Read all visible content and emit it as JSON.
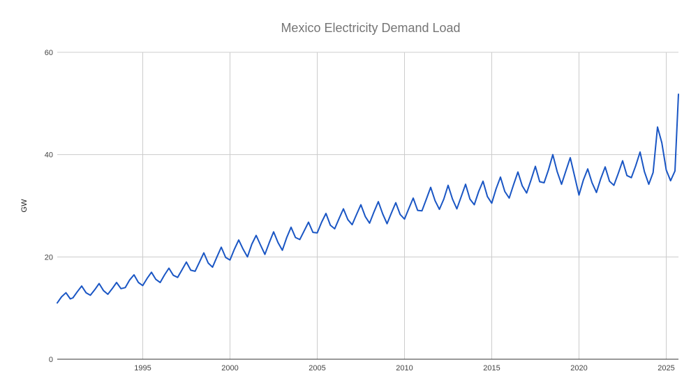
{
  "chart_data": {
    "type": "line",
    "title": "Mexico Electricity Demand Load",
    "xlabel": "",
    "ylabel": "GW",
    "xlim": [
      1990.1,
      2025.7
    ],
    "ylim": [
      0,
      60
    ],
    "y_ticks": [
      "0",
      "20",
      "40",
      "60"
    ],
    "x_ticks": [
      "1995",
      "2000",
      "2005",
      "2010",
      "2015",
      "2020",
      "2025"
    ],
    "grid": true,
    "legend": "none",
    "series": [
      {
        "name": "GW",
        "color": "#1a56c4",
        "x": [
          1990.1,
          1990.35,
          1990.6,
          1990.85,
          1991.0,
          1991.25,
          1991.5,
          1991.75,
          1992.0,
          1992.25,
          1992.5,
          1992.75,
          1993.0,
          1993.25,
          1993.5,
          1993.75,
          1994.0,
          1994.25,
          1994.5,
          1994.75,
          1995.0,
          1995.25,
          1995.5,
          1995.75,
          1996.0,
          1996.25,
          1996.5,
          1996.75,
          1997.0,
          1997.25,
          1997.5,
          1997.75,
          1998.0,
          1998.25,
          1998.5,
          1998.75,
          1999.0,
          1999.25,
          1999.5,
          1999.75,
          2000.0,
          2000.25,
          2000.5,
          2000.75,
          2001.0,
          2001.25,
          2001.5,
          2001.75,
          2002.0,
          2002.25,
          2002.5,
          2002.75,
          2003.0,
          2003.25,
          2003.5,
          2003.75,
          2004.0,
          2004.25,
          2004.5,
          2004.75,
          2005.0,
          2005.25,
          2005.5,
          2005.75,
          2006.0,
          2006.25,
          2006.5,
          2006.75,
          2007.0,
          2007.25,
          2007.5,
          2007.75,
          2008.0,
          2008.25,
          2008.5,
          2008.75,
          2009.0,
          2009.25,
          2009.5,
          2009.75,
          2010.0,
          2010.25,
          2010.5,
          2010.75,
          2011.0,
          2011.25,
          2011.5,
          2011.75,
          2012.0,
          2012.25,
          2012.5,
          2012.75,
          2013.0,
          2013.25,
          2013.5,
          2013.75,
          2014.0,
          2014.25,
          2014.5,
          2014.75,
          2015.0,
          2015.25,
          2015.5,
          2015.75,
          2016.0,
          2016.25,
          2016.5,
          2016.75,
          2017.0,
          2017.25,
          2017.5,
          2017.75,
          2018.0,
          2018.25,
          2018.5,
          2018.75,
          2019.0,
          2019.25,
          2019.5,
          2019.75,
          2020.0,
          2020.25,
          2020.5,
          2020.75,
          2021.0,
          2021.25,
          2021.5,
          2021.75,
          2022.0,
          2022.25,
          2022.5,
          2022.75,
          2023.0,
          2023.25,
          2023.5,
          2023.75,
          2024.0,
          2024.25,
          2024.5,
          2024.75,
          2025.0,
          2025.25,
          2025.5,
          2025.7
        ],
        "y": [
          11.0,
          12.2,
          13.0,
          11.8,
          12.0,
          13.2,
          14.3,
          13.0,
          12.5,
          13.6,
          14.8,
          13.4,
          12.7,
          13.8,
          15.0,
          13.8,
          14.0,
          15.5,
          16.5,
          15.0,
          14.4,
          15.8,
          17.0,
          15.6,
          15.0,
          16.5,
          17.8,
          16.4,
          16.0,
          17.5,
          19.0,
          17.4,
          17.2,
          19.0,
          20.8,
          18.8,
          18.0,
          20.0,
          21.9,
          19.9,
          19.4,
          21.5,
          23.3,
          21.5,
          20.0,
          22.5,
          24.2,
          22.3,
          20.5,
          22.8,
          24.9,
          22.8,
          21.3,
          23.8,
          25.8,
          23.8,
          23.4,
          25.1,
          26.8,
          24.8,
          24.7,
          26.8,
          28.5,
          26.2,
          25.5,
          27.5,
          29.4,
          27.3,
          26.3,
          28.3,
          30.2,
          27.9,
          26.6,
          28.8,
          30.8,
          28.4,
          26.5,
          28.6,
          30.6,
          28.3,
          27.4,
          29.5,
          31.5,
          29.1,
          29.0,
          31.3,
          33.6,
          31.0,
          29.3,
          31.3,
          34.0,
          31.3,
          29.4,
          31.8,
          34.2,
          31.3,
          30.2,
          32.8,
          34.8,
          31.8,
          30.5,
          33.3,
          35.6,
          32.8,
          31.5,
          34.1,
          36.6,
          33.9,
          32.5,
          35.0,
          37.7,
          34.7,
          34.5,
          37.0,
          40.0,
          36.7,
          34.2,
          36.8,
          39.4,
          35.8,
          32.1,
          35.0,
          37.2,
          34.5,
          32.6,
          35.3,
          37.6,
          34.8,
          34.0,
          36.3,
          38.8,
          35.9,
          35.5,
          37.8,
          40.5,
          36.7,
          34.2,
          36.5,
          45.4,
          42.3,
          37.0,
          34.9,
          36.8,
          51.8
        ]
      }
    ]
  }
}
